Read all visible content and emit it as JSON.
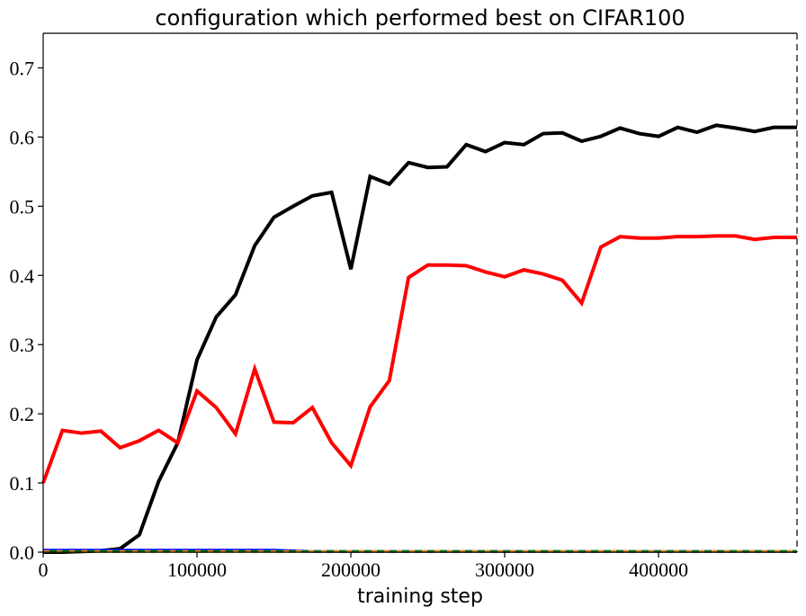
{
  "chart_data": {
    "type": "line",
    "title": "configuration which performed best on CIFAR100",
    "xlabel": "training step",
    "ylabel": "",
    "xlim": [
      0,
      490000
    ],
    "ylim": [
      0,
      0.75
    ],
    "xticks": [
      0,
      100000,
      200000,
      300000,
      400000
    ],
    "xtick_labels": [
      "0",
      "100000",
      "200000",
      "300000",
      "400000"
    ],
    "yticks": [
      0.0,
      0.1,
      0.2,
      0.3,
      0.4,
      0.5,
      0.6,
      0.7
    ],
    "ytick_labels": [
      "0.0",
      "0.1",
      "0.2",
      "0.3",
      "0.4",
      "0.5",
      "0.6",
      "0.7"
    ],
    "grid": false,
    "legend": "none",
    "x": [
      0,
      12500,
      25000,
      37500,
      50000,
      62500,
      75000,
      87500,
      100000,
      112500,
      125000,
      137500,
      150000,
      162500,
      175000,
      187500,
      200000,
      212500,
      225000,
      237500,
      250000,
      262500,
      275000,
      287500,
      300000,
      312500,
      325000,
      337500,
      350000,
      362500,
      375000,
      387500,
      400000,
      412500,
      425000,
      437500,
      450000,
      462500,
      475000,
      490000
    ],
    "series": [
      {
        "color": "#000000",
        "style": "solid",
        "values": [
          0.0,
          0.0,
          0.001,
          0.002,
          0.005,
          0.025,
          0.102,
          0.158,
          0.278,
          0.34,
          0.372,
          0.443,
          0.484,
          0.5,
          0.515,
          0.52,
          0.409,
          0.543,
          0.532,
          0.563,
          0.556,
          0.557,
          0.589,
          0.579,
          0.592,
          0.589,
          0.605,
          0.606,
          0.594,
          0.601,
          0.613,
          0.605,
          0.601,
          0.614,
          0.607,
          0.617,
          0.613,
          0.608,
          0.614,
          0.614
        ]
      },
      {
        "color": "#ff0000",
        "style": "solid",
        "values": [
          0.1,
          0.176,
          0.172,
          0.175,
          0.151,
          0.161,
          0.176,
          0.158,
          0.233,
          0.209,
          0.171,
          0.265,
          0.188,
          0.187,
          0.209,
          0.158,
          0.125,
          0.21,
          0.248,
          0.397,
          0.415,
          0.415,
          0.414,
          0.405,
          0.398,
          0.408,
          0.402,
          0.393,
          0.36,
          0.441,
          0.456,
          0.454,
          0.454,
          0.456,
          0.456,
          0.457,
          0.457,
          0.452,
          0.455,
          0.455
        ]
      },
      {
        "color": "#0000ff",
        "style": "solid",
        "values": [
          0.003,
          0.003,
          0.003,
          0.003,
          0.003,
          0.003,
          0.003,
          0.003,
          0.003,
          0.003,
          0.003,
          0.003,
          0.003,
          0.002,
          0.001,
          0.001,
          0.001,
          0.001,
          0.001,
          0.001,
          0.001,
          0.001,
          0.001,
          0.001,
          0.001,
          0.001,
          0.001,
          0.001,
          0.001,
          0.001,
          0.001,
          0.001,
          0.001,
          0.001,
          0.001,
          0.001,
          0.001,
          0.001,
          0.001,
          0.001
        ]
      },
      {
        "color": "#ff9900",
        "style": "dashed",
        "values": [
          0.001,
          0.001,
          0.001,
          0.001,
          0.001,
          0.001,
          0.001,
          0.001,
          0.001,
          0.001,
          0.001,
          0.001,
          0.001,
          0.001,
          0.001,
          0.001,
          0.001,
          0.001,
          0.001,
          0.001,
          0.001,
          0.001,
          0.001,
          0.001,
          0.001,
          0.001,
          0.001,
          0.001,
          0.001,
          0.001,
          0.001,
          0.001,
          0.001,
          0.001,
          0.001,
          0.001,
          0.001,
          0.001,
          0.001,
          0.001
        ]
      },
      {
        "color": "#008000",
        "style": "dashed",
        "values": [
          0.001,
          0.001,
          0.001,
          0.001,
          0.001,
          0.001,
          0.001,
          0.001,
          0.001,
          0.001,
          0.001,
          0.001,
          0.001,
          0.001,
          0.001,
          0.001,
          0.001,
          0.001,
          0.001,
          0.001,
          0.001,
          0.001,
          0.001,
          0.001,
          0.001,
          0.001,
          0.001,
          0.001,
          0.001,
          0.001,
          0.001,
          0.001,
          0.001,
          0.001,
          0.001,
          0.001,
          0.001,
          0.001,
          0.001,
          0.001
        ]
      }
    ]
  }
}
